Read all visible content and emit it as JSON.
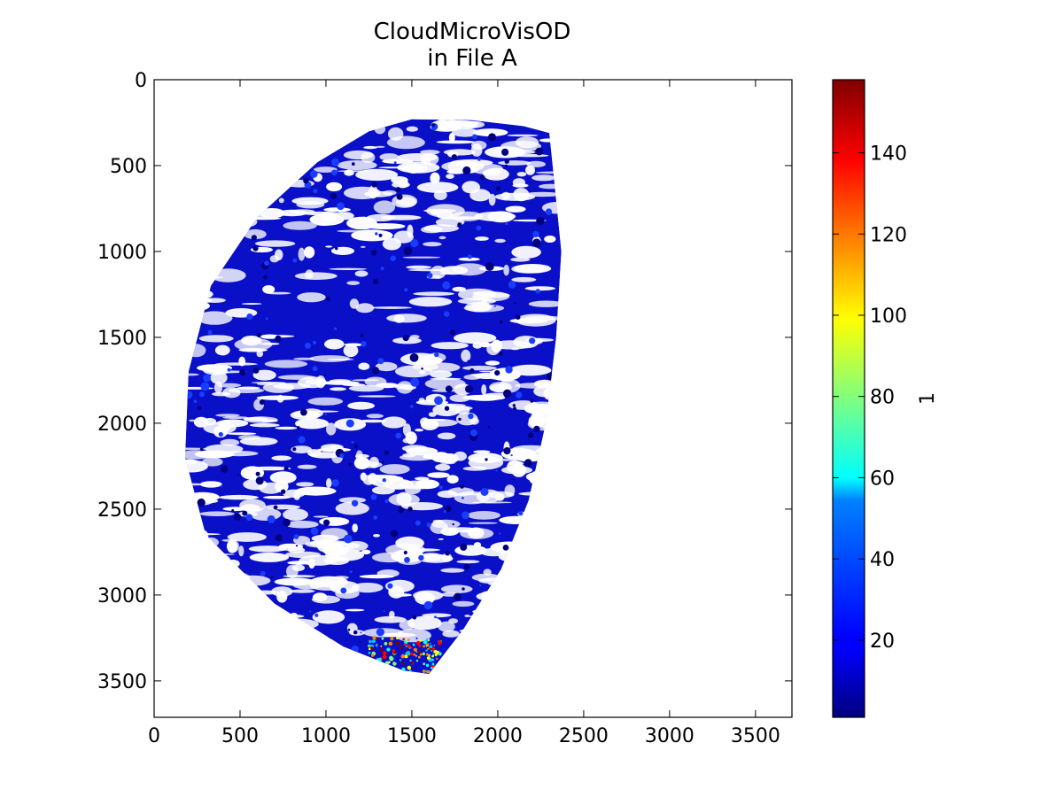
{
  "chart_data": {
    "type": "heatmap",
    "title": "CloudMicroVisOD\nin File A",
    "title_lines": [
      "CloudMicroVisOD",
      "in File A"
    ],
    "xlabel": "",
    "ylabel": "",
    "xlim": [
      0,
      3712
    ],
    "ylim": [
      3712,
      0
    ],
    "y_inverted": true,
    "x_ticks": [
      0,
      500,
      1000,
      1500,
      2000,
      2500,
      3000,
      3500
    ],
    "y_ticks": [
      0,
      500,
      1000,
      1500,
      2000,
      2500,
      3000,
      3500
    ],
    "x_tick_labels": [
      "0",
      "500",
      "1000",
      "1500",
      "2000",
      "2500",
      "3000",
      "3500"
    ],
    "y_tick_labels": [
      "0",
      "500",
      "1000",
      "1500",
      "2000",
      "2500",
      "3000",
      "3500"
    ],
    "colormap": "jet",
    "colorbar": {
      "label": "1",
      "range": [
        1,
        158
      ],
      "ticks": [
        20,
        40,
        60,
        80,
        100,
        120,
        140
      ],
      "tick_labels": [
        "20",
        "40",
        "60",
        "80",
        "100",
        "120",
        "140"
      ],
      "placement": "right"
    },
    "grid": false,
    "description_of_field": "disk-shaped region of valid data (mostly low values, deep blue) with many white no-data/cloud gaps; a few higher values (cyan to red) near the bottom around x 1300-1600, y 3300-3450",
    "data_extent": {
      "x_range": [
        180,
        2370
      ],
      "y_range": [
        230,
        3460
      ]
    }
  },
  "colors": {
    "low": "#00007f",
    "mid_low": "#0000ff",
    "mid": "#00ffff",
    "mid_high": "#ffff00",
    "high": "#ff0000",
    "max": "#7f0000"
  }
}
